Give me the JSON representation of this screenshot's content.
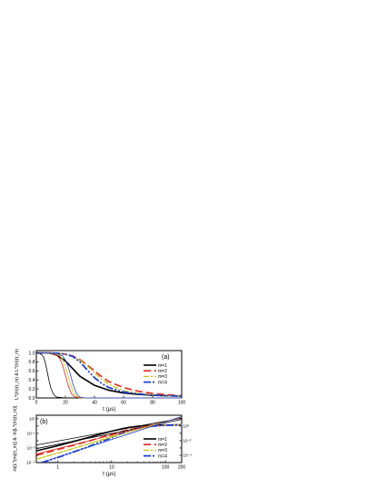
{
  "chart_data": [
    {
      "type": "line",
      "panel_label": "(a)",
      "xlabel": "τ (μs)",
      "ylabel": "L^(m)(τ_m) & L^(m)(τ_m)",
      "xlim": [
        0,
        100
      ],
      "ylim": [
        0.0,
        1.05
      ],
      "x_ticks": [
        0,
        20,
        40,
        60,
        80,
        100
      ],
      "y_ticks": [
        0.0,
        0.2,
        0.4,
        0.6,
        0.8,
        1.0
      ],
      "legend_position": "right",
      "series": [
        {
          "name": "m=1",
          "color": "#000000",
          "dash": "solid",
          "width": 1.6,
          "x": [
            0,
            5,
            10,
            13,
            15,
            20,
            25,
            30,
            40,
            50,
            60,
            70,
            80,
            90,
            100
          ],
          "y": [
            1.0,
            1.0,
            0.99,
            0.96,
            0.93,
            0.82,
            0.65,
            0.48,
            0.28,
            0.17,
            0.11,
            0.08,
            0.06,
            0.05,
            0.04
          ]
        },
        {
          "name": "m=2",
          "color": "#e8251b",
          "dash": "8,4",
          "width": 1.6,
          "x": [
            0,
            10,
            15,
            20,
            25,
            30,
            35,
            40,
            45,
            50,
            60,
            70,
            80,
            90,
            100
          ],
          "y": [
            1.0,
            1.0,
            0.99,
            0.97,
            0.93,
            0.85,
            0.73,
            0.6,
            0.47,
            0.36,
            0.23,
            0.15,
            0.1,
            0.07,
            0.05
          ]
        },
        {
          "name": "m=3",
          "color": "#c9c91c",
          "dash": "6,2,2,2",
          "width": 1.4,
          "x": [
            0,
            10,
            15,
            20,
            25,
            30,
            35,
            40,
            45,
            50,
            60,
            70,
            80,
            90,
            100
          ],
          "y": [
            1.0,
            1.0,
            0.99,
            0.97,
            0.92,
            0.83,
            0.71,
            0.56,
            0.42,
            0.3,
            0.16,
            0.1,
            0.07,
            0.05,
            0.04
          ]
        },
        {
          "name": "m=4",
          "color": "#1f3fd6",
          "dash": "8,2,2,2,2,2",
          "width": 1.8,
          "x": [
            0,
            10,
            15,
            20,
            25,
            30,
            35,
            40,
            45,
            50,
            60,
            70,
            80,
            90,
            100
          ],
          "y": [
            1.0,
            1.0,
            0.99,
            0.97,
            0.92,
            0.8,
            0.62,
            0.45,
            0.32,
            0.23,
            0.13,
            0.09,
            0.06,
            0.05,
            0.04
          ]
        },
        {
          "name": "",
          "color": "#000000",
          "dash": "solid",
          "width": 0.8,
          "x": [
            0,
            2,
            4,
            5,
            6,
            7,
            8,
            9,
            10,
            12,
            14,
            20,
            100
          ],
          "y": [
            1.0,
            0.99,
            0.95,
            0.9,
            0.8,
            0.66,
            0.5,
            0.34,
            0.22,
            0.07,
            0.02,
            0.0,
            0.0
          ]
        },
        {
          "name": "",
          "color": "#e8251b",
          "dash": "solid",
          "width": 0.8,
          "x": [
            0,
            10,
            14,
            16,
            18,
            19,
            20,
            21,
            22,
            24,
            26,
            30,
            100
          ],
          "y": [
            1.0,
            0.99,
            0.95,
            0.88,
            0.73,
            0.62,
            0.5,
            0.38,
            0.27,
            0.1,
            0.03,
            0.0,
            0.0
          ]
        },
        {
          "name": "",
          "color": "#c9c91c",
          "dash": "solid",
          "width": 0.8,
          "x": [
            0,
            12,
            16,
            18,
            20,
            21,
            22,
            23,
            24,
            26,
            28,
            32,
            100
          ],
          "y": [
            1.0,
            0.99,
            0.94,
            0.86,
            0.7,
            0.59,
            0.47,
            0.35,
            0.25,
            0.09,
            0.03,
            0.0,
            0.0
          ]
        },
        {
          "name": "",
          "color": "#1f3fd6",
          "dash": "solid",
          "width": 0.8,
          "x": [
            0,
            14,
            18,
            20,
            22,
            23,
            24,
            25,
            26,
            28,
            30,
            34,
            100
          ],
          "y": [
            1.0,
            0.99,
            0.93,
            0.84,
            0.68,
            0.57,
            0.45,
            0.33,
            0.23,
            0.08,
            0.02,
            0.0,
            0.0
          ]
        }
      ]
    },
    {
      "type": "line",
      "panel_label": "(b)",
      "xlabel": "τ (μs)",
      "ylabel": "-ln[L^(m)(τ_m)] & -ln[L^(m)(τ_m)]",
      "xscale": "log",
      "yscale": "log",
      "xlim": [
        0.4,
        200
      ],
      "ylim": [
        1e-05,
        30
      ],
      "x_ticks": [
        1,
        10,
        100,
        200
      ],
      "y_tick_labels": [
        "10⁻⁵",
        "10⁻⁴",
        "10⁻³",
        "10⁻²",
        "10⁻¹",
        "10⁰",
        "10¹"
      ],
      "legend_position": "right",
      "series": [
        {
          "name": "m=1",
          "color": "#000000",
          "dash": "solid",
          "width": 1.6,
          "x": [
            0.4,
            1,
            2,
            4,
            6,
            10,
            15,
            20,
            30,
            50,
            100,
            200
          ],
          "y": [
            0.0004,
            0.002,
            0.008,
            0.032,
            0.075,
            0.2,
            0.4,
            0.62,
            0.9,
            1.2,
            1.4,
            1.45
          ]
        },
        {
          "name": "m=2",
          "color": "#e8251b",
          "dash": "8,4",
          "width": 1.6,
          "x": [
            0.4,
            1,
            2,
            4,
            6,
            10,
            15,
            20,
            30,
            50,
            100,
            200
          ],
          "y": [
            0.0001,
            0.0006,
            0.0025,
            0.01,
            0.025,
            0.07,
            0.17,
            0.3,
            0.6,
            1.0,
            1.3,
            1.4
          ]
        },
        {
          "name": "m=3",
          "color": "#c9c91c",
          "dash": "6,2,2,2",
          "width": 1.4,
          "x": [
            0.4,
            1,
            2,
            4,
            6,
            10,
            15,
            20,
            30,
            50,
            100,
            200
          ],
          "y": [
            3e-05,
            0.0002,
            0.0009,
            0.004,
            0.011,
            0.04,
            0.12,
            0.25,
            0.55,
            0.95,
            1.3,
            1.4
          ]
        },
        {
          "name": "m=4",
          "color": "#1f3fd6",
          "dash": "8,2,2,2,2,2",
          "width": 1.8,
          "x": [
            0.5,
            1,
            2,
            4,
            6,
            10,
            15,
            20,
            30,
            50,
            100,
            200
          ],
          "y": [
            1e-05,
            5e-05,
            0.0003,
            0.0018,
            0.006,
            0.025,
            0.09,
            0.2,
            0.5,
            0.9,
            1.25,
            1.35
          ]
        },
        {
          "name": "",
          "color": "#000000",
          "dash": "solid",
          "width": 0.8,
          "x": [
            0.4,
            200
          ],
          "y": [
            0.0025,
            12
          ]
        },
        {
          "name": "",
          "color": "#000000",
          "dash": "solid",
          "width": 0.8,
          "x": [
            0.4,
            200
          ],
          "y": [
            0.0008,
            8
          ]
        },
        {
          "name": "",
          "color": "#e8251b",
          "dash": "solid",
          "width": 0.8,
          "x": [
            0.4,
            200
          ],
          "y": [
            0.00015,
            15
          ]
        },
        {
          "name": "",
          "color": "#c9c91c",
          "dash": "solid",
          "width": 0.8,
          "x": [
            0.4,
            200
          ],
          "y": [
            3e-05,
            18
          ]
        },
        {
          "name": "",
          "color": "#1f3fd6",
          "dash": "solid",
          "width": 0.8,
          "x": [
            0.4,
            200
          ],
          "y": [
            6e-06,
            20
          ]
        }
      ]
    }
  ]
}
